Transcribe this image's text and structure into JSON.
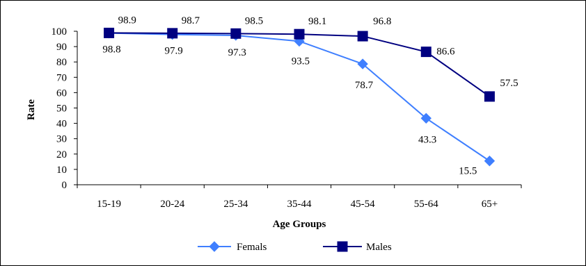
{
  "chart_data": {
    "type": "line",
    "categories": [
      "15-19",
      "20-24",
      "25-34",
      "35-44",
      "45-54",
      "55-64",
      "65+"
    ],
    "series": [
      {
        "name": "Femals",
        "values": [
          98.8,
          97.9,
          97.3,
          93.5,
          78.7,
          43.3,
          15.5
        ],
        "labels": [
          "98.8",
          "97.9",
          "97.3",
          "93.5",
          "78.7",
          "43.3",
          "15.5"
        ],
        "color": "#3F7FFF",
        "marker": "diamond"
      },
      {
        "name": "Males",
        "values": [
          98.9,
          98.7,
          98.5,
          98.1,
          96.8,
          86.6,
          57.5
        ],
        "labels": [
          "98.9",
          "98.7",
          "98.5",
          "98.1",
          "96.8",
          "86.6",
          "57.5"
        ],
        "color": "#000080",
        "marker": "square"
      }
    ],
    "xlabel": "Age Groups",
    "ylabel": "Rate",
    "ylim": [
      0,
      100
    ],
    "yticks": [
      "0",
      "10",
      "20",
      "30",
      "40",
      "50",
      "60",
      "70",
      "80",
      "90",
      "100"
    ],
    "grid": false,
    "legend_position": "bottom"
  }
}
